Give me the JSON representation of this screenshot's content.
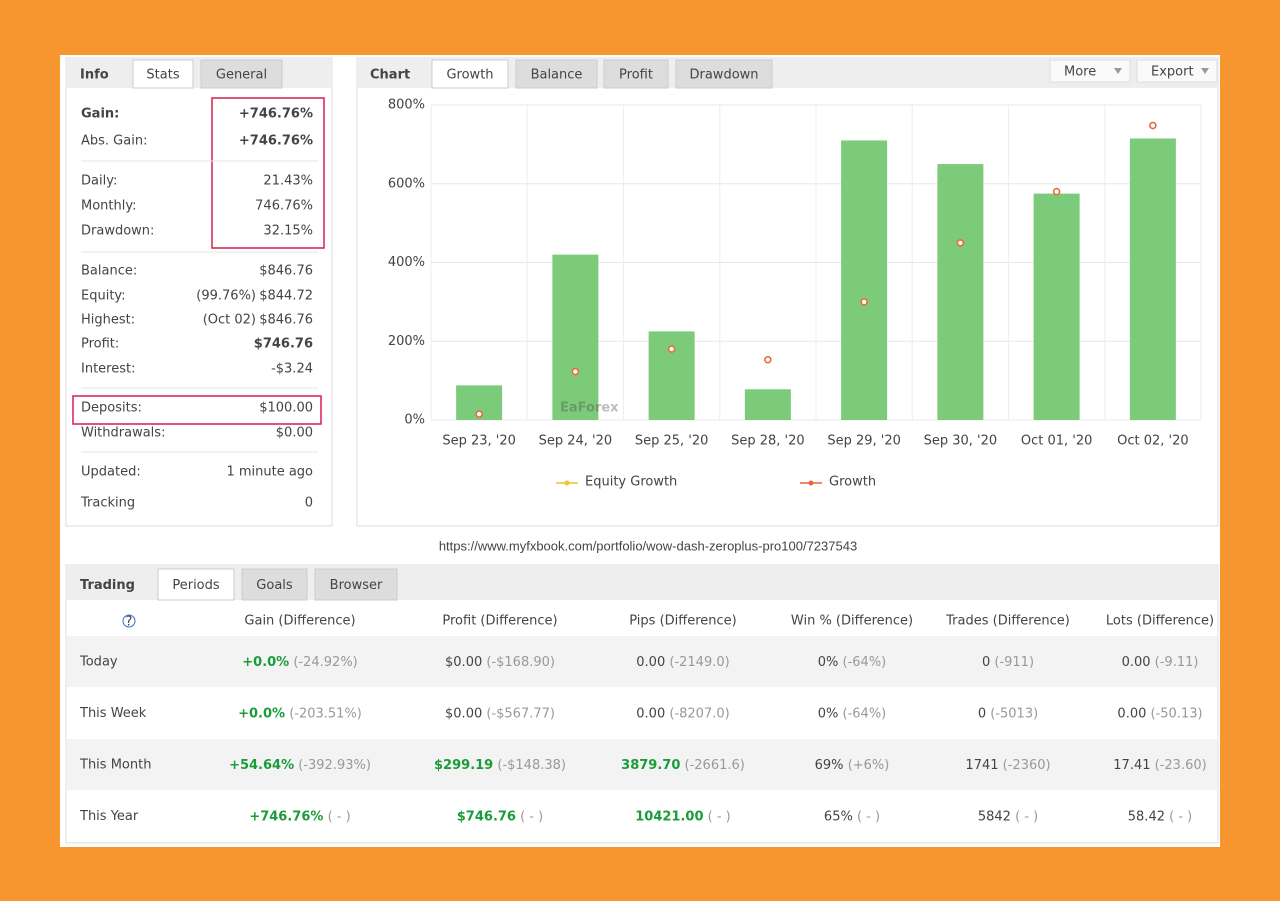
{
  "stats_panel": {
    "tabs": [
      "Info",
      "Stats",
      "General"
    ],
    "rows": [
      {
        "label": "Gain:",
        "value": "+746.76%",
        "color": "#1a9c3a"
      },
      {
        "label": "Abs. Gain:",
        "value": "+746.76%",
        "color": "#1a9c3a"
      },
      {
        "label": "Daily:",
        "value": "21.43%"
      },
      {
        "label": "Monthly:",
        "value": "746.76%"
      },
      {
        "label": "Drawdown:",
        "value": "32.15%"
      },
      {
        "label": "Balance:",
        "value": "$846.76"
      },
      {
        "label": "Equity:",
        "note": "(99.76%)",
        "value": "$844.72"
      },
      {
        "label": "Highest:",
        "note": "(Oct 02)",
        "value": "$846.76"
      },
      {
        "label": "Profit:",
        "value": "$746.76",
        "color": "#1a9c3a"
      },
      {
        "label": "Interest:",
        "value": "-$3.24"
      },
      {
        "label": "Deposits:",
        "value": "$100.00"
      },
      {
        "label": "Withdrawals:",
        "value": "$0.00"
      },
      {
        "label": "Updated:",
        "value": "1 minute ago"
      },
      {
        "label": "Tracking",
        "value": "0"
      }
    ]
  },
  "chart_panel": {
    "tabs": [
      "Chart",
      "Growth",
      "Balance",
      "Profit",
      "Drawdown"
    ],
    "buttons": [
      "More",
      "Export"
    ],
    "chart": {
      "type": "bar",
      "categories": [
        "Sep 23, '20",
        "Sep 24, '20",
        "Sep 25, '20",
        "Sep 28, '20",
        "Sep 29, '20",
        "Sep 30, '20",
        "Oct 01, '20",
        "Oct 02, '20"
      ],
      "ylim": [
        0,
        800
      ],
      "yticks": [
        {
          "value": 0,
          "label": "0%"
        },
        {
          "value": 200,
          "label": "200%"
        },
        {
          "value": 400,
          "label": "400%"
        },
        {
          "value": 600,
          "label": "600%"
        },
        {
          "value": 800,
          "label": "800%"
        }
      ],
      "grid": true,
      "bars": {
        "color": "#7ccb7a",
        "values": [
          88,
          420,
          225,
          78,
          710,
          650,
          575,
          715
        ]
      },
      "series": [
        {
          "name": "Equity Growth",
          "color": "#f2c12e",
          "type": "line",
          "values": [
            15,
            123,
            180,
            153,
            300,
            450,
            580,
            748
          ]
        },
        {
          "name": "Growth",
          "color": "#e8643c",
          "type": "line",
          "values": [
            15,
            123,
            180,
            153,
            300,
            450,
            580,
            748
          ]
        }
      ]
    }
  },
  "watermark": "EaForex",
  "url": "https://www.myfxbook.com/portfolio/wow-dash-zeroplus-pro100/7237543",
  "trading_panel": {
    "tabs": [
      "Trading",
      "Periods",
      "Goals",
      "Browser"
    ],
    "help": "?",
    "columns": [
      "Gain (Difference)",
      "Profit (Difference)",
      "Pips (Difference)",
      "Win % (Difference)",
      "Trades (Difference)",
      "Lots (Difference)"
    ],
    "rows": [
      {
        "label": "Today",
        "cells": [
          {
            "value": "+0.0%",
            "diff": "(-24.92%)",
            "color": "#1a9c3a"
          },
          {
            "value": "$0.00",
            "diff": "(-$168.90)"
          },
          {
            "value": "0.00",
            "diff": "(-2149.0)"
          },
          {
            "value": "0%",
            "diff": "(-64%)"
          },
          {
            "value": "0",
            "diff": "(-911)"
          },
          {
            "value": "0.00",
            "diff": "(-9.11)"
          }
        ]
      },
      {
        "label": "This Week",
        "cells": [
          {
            "value": "+0.0%",
            "diff": "(-203.51%)",
            "color": "#1a9c3a"
          },
          {
            "value": "$0.00",
            "diff": "(-$567.77)"
          },
          {
            "value": "0.00",
            "diff": "(-8207.0)"
          },
          {
            "value": "0%",
            "diff": "(-64%)"
          },
          {
            "value": "0",
            "diff": "(-5013)"
          },
          {
            "value": "0.00",
            "diff": "(-50.13)"
          }
        ]
      },
      {
        "label": "This Month",
        "cells": [
          {
            "value": "+54.64%",
            "diff": "(-392.93%)",
            "color": "#1a9c3a"
          },
          {
            "value": "$299.19",
            "diff": "(-$148.38)",
            "color": "#1a9c3a"
          },
          {
            "value": "3879.70",
            "diff": "(-2661.6)",
            "color": "#1a9c3a"
          },
          {
            "value": "69%",
            "diff": "(+6%)"
          },
          {
            "value": "1741",
            "diff": "(-2360)"
          },
          {
            "value": "17.41",
            "diff": "(-23.60)"
          }
        ]
      },
      {
        "label": "This Year",
        "cells": [
          {
            "value": "+746.76%",
            "diff": "( - )",
            "color": "#1a9c3a"
          },
          {
            "value": "$746.76",
            "diff": "( - )",
            "color": "#1a9c3a"
          },
          {
            "value": "10421.00",
            "diff": "( - )",
            "color": "#1a9c3a"
          },
          {
            "value": "65%",
            "diff": "( - )"
          },
          {
            "value": "5842",
            "diff": "( - )"
          },
          {
            "value": "58.42",
            "diff": "( - )"
          }
        ]
      }
    ]
  }
}
